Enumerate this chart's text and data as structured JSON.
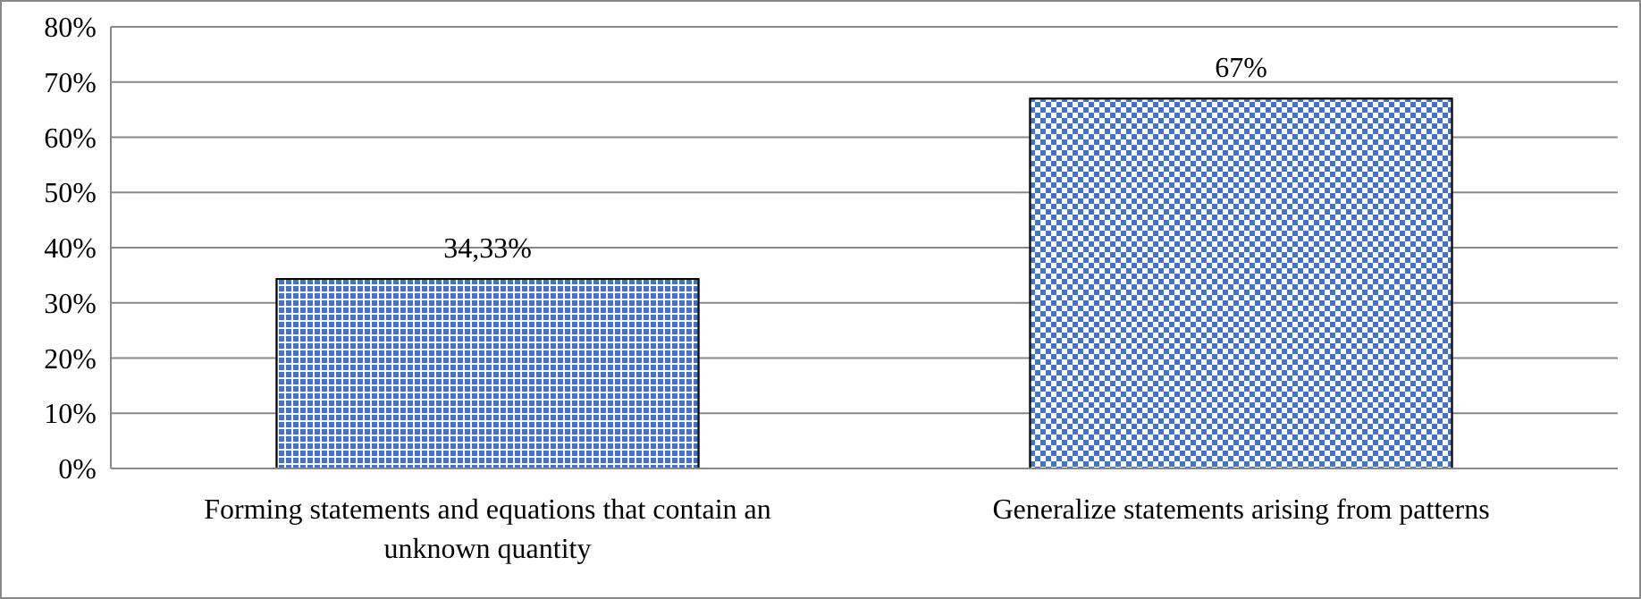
{
  "chart_data": {
    "type": "bar",
    "categories": [
      "Forming statements and equations that contain an unknown quantity",
      "Generalize statements arising from patterns"
    ],
    "values": [
      34.33,
      67
    ],
    "colors": [
      "#4472c4",
      "#4472c4"
    ],
    "value_labels": [
      "34,33%",
      "67%"
    ],
    "ylim": [
      0,
      80
    ],
    "yticks": [
      {
        "value": 0,
        "label": "0%"
      },
      {
        "value": 10,
        "label": "10%"
      },
      {
        "value": 20,
        "label": "20%"
      },
      {
        "value": 30,
        "label": "30%"
      },
      {
        "value": 40,
        "label": "40%"
      },
      {
        "value": 50,
        "label": "50%"
      },
      {
        "value": 60,
        "label": "60%"
      },
      {
        "value": 70,
        "label": "70%"
      },
      {
        "value": 80,
        "label": "80%"
      }
    ],
    "grid": true
  }
}
